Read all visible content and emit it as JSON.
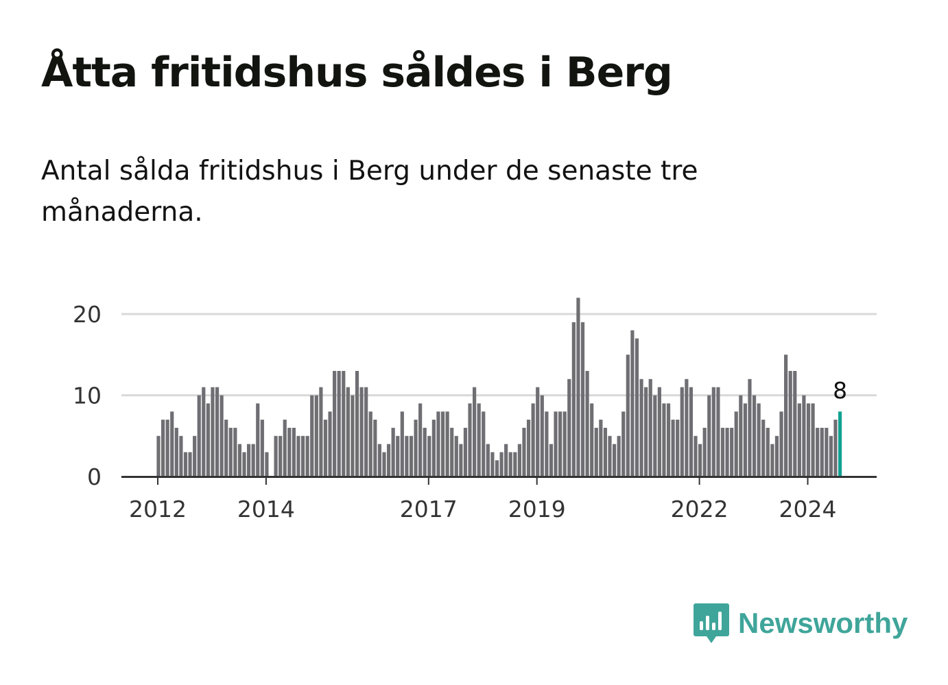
{
  "title": "Åtta fritidshus såldes i Berg",
  "subtitle": "Antal sålda fritidshus i Berg under de senaste tre månaderna.",
  "brand": {
    "name": "Newsworthy",
    "color": "#3fa59a",
    "icon": "newsworthy-logo-icon"
  },
  "colors": {
    "bar": "#6f6e73",
    "highlight": "#12a193",
    "grid": "#d9d9d9",
    "axis": "#333333"
  },
  "chart_data": {
    "type": "bar",
    "x_start": "2012-01",
    "x_end": "2024-08",
    "frequency": "monthly",
    "values": [
      5,
      7,
      7,
      8,
      6,
      5,
      3,
      3,
      5,
      10,
      11,
      9,
      11,
      11,
      10,
      7,
      6,
      6,
      4,
      3,
      4,
      4,
      9,
      7,
      3,
      0,
      5,
      5,
      7,
      6,
      6,
      5,
      5,
      5,
      10,
      10,
      11,
      7,
      8,
      13,
      13,
      13,
      11,
      10,
      13,
      11,
      11,
      8,
      7,
      4,
      3,
      4,
      6,
      5,
      8,
      5,
      5,
      7,
      9,
      6,
      5,
      7,
      8,
      8,
      8,
      6,
      5,
      4,
      6,
      9,
      11,
      9,
      8,
      4,
      3,
      2,
      3,
      4,
      3,
      3,
      4,
      6,
      7,
      9,
      11,
      10,
      8,
      4,
      8,
      8,
      8,
      12,
      19,
      22,
      19,
      13,
      9,
      6,
      7,
      6,
      5,
      4,
      5,
      8,
      15,
      18,
      17,
      12,
      11,
      12,
      10,
      11,
      9,
      9,
      7,
      7,
      11,
      12,
      11,
      5,
      4,
      6,
      10,
      11,
      11,
      6,
      6,
      6,
      8,
      10,
      9,
      12,
      10,
      9,
      7,
      6,
      4,
      5,
      8,
      15,
      13,
      13,
      9,
      10,
      9,
      9,
      6,
      6,
      6,
      5,
      7,
      8
    ],
    "highlight": {
      "index": 151,
      "value": 8,
      "label": "8"
    },
    "yticks": [
      "0",
      "10",
      "20"
    ],
    "ytick_values": [
      0,
      10,
      20
    ],
    "xticks": [
      {
        "label": "2012",
        "date": "2012-01"
      },
      {
        "label": "2014",
        "date": "2014-01"
      },
      {
        "label": "2017",
        "date": "2017-01"
      },
      {
        "label": "2019",
        "date": "2019-01"
      },
      {
        "label": "2022",
        "date": "2022-01"
      },
      {
        "label": "2024",
        "date": "2024-01"
      }
    ],
    "ylim": [
      0,
      22
    ],
    "grid": true,
    "xlabel": "",
    "ylabel": ""
  }
}
